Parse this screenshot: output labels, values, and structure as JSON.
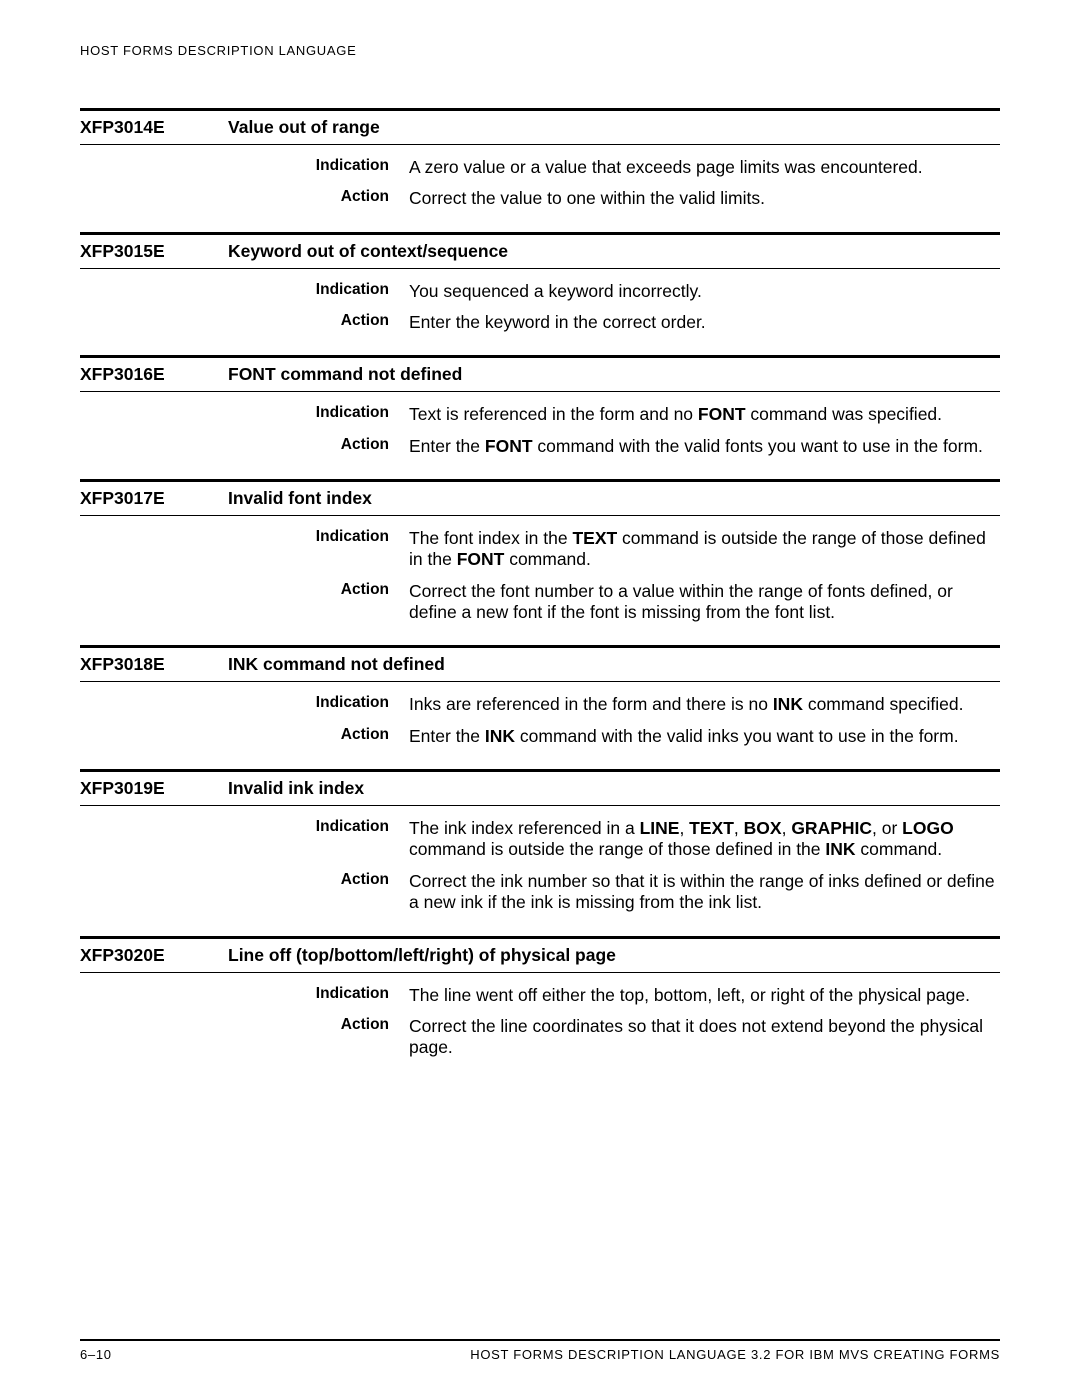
{
  "page": {
    "running_head": "HOST FORMS DESCRIPTION LANGUAGE",
    "footer_left": "6–10",
    "footer_right": "HOST FORMS DESCRIPTION LANGUAGE 3.2 FOR IBM MVS CREATING FORMS",
    "labels": {
      "indication": "Indication",
      "action": "Action"
    }
  },
  "errors": [
    {
      "code": "XFP3014E",
      "title": "Value out of range",
      "indication": "A zero value or a value that exceeds page limits was encountered.",
      "action": "Correct the value to one within the valid limits."
    },
    {
      "code": "XFP3015E",
      "title": "Keyword out of context/sequence",
      "indication": "You sequenced a keyword incorrectly.",
      "action": "Enter the keyword in the correct order."
    },
    {
      "code": "XFP3016E",
      "title": "FONT command not defined",
      "indication": "Text is referenced in the form and no <b>FONT</b> command was specified.",
      "action": "Enter the <b>FONT</b> command with the valid fonts you want to use in the form."
    },
    {
      "code": "XFP3017E",
      "title": "Invalid font index",
      "indication": "The font index in the <b>TEXT</b> command is outside the range of those defined in the <b>FONT</b> command.",
      "action": "Correct the font number to a value within the range of fonts defined, or define a new font if the font is missing from the font list."
    },
    {
      "code": "XFP3018E",
      "title": "INK command not defined",
      "indication": "Inks are referenced in the form and there is no <b>INK</b> command specified.",
      "action": "Enter the <b>INK</b> command with the valid inks you want to use in the form."
    },
    {
      "code": "XFP3019E",
      "title": "Invalid ink index",
      "indication": "The ink index referenced in a <b>LINE</b>, <b>TEXT</b>, <b>BOX</b>, <b>GRAPHIC</b>, or <b>LOGO</b> command is outside the range of those defined in the <b>INK</b> command.",
      "action": "Correct the ink number so that it is within the range of inks defined or define a new ink if the ink is missing from the ink list."
    },
    {
      "code": "XFP3020E",
      "title": "Line off (top/bottom/left/right) of physical page",
      "indication": "The line went off either the top, bottom, left, or right of the physical page.",
      "action": "Correct the line coordinates so that it does not extend beyond the physical page."
    }
  ]
}
